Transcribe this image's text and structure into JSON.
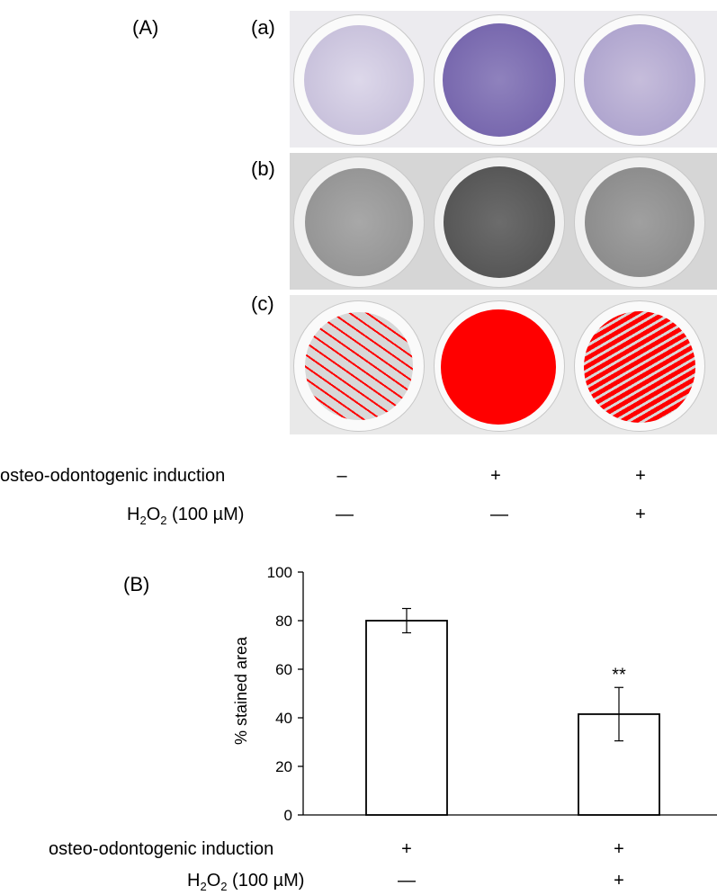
{
  "panel_a": {
    "label": "(A)",
    "sublabels": [
      "(a)",
      "(b)",
      "(c)"
    ],
    "row1": {
      "label": "osteo-odontogenic induction",
      "values": [
        "–",
        "+",
        "+"
      ]
    },
    "row2": {
      "label_main": "H",
      "label_sub1": "2",
      "label_mid": "O",
      "label_sub2": "2",
      "label_rest": " (100 µM)",
      "values": [
        "—",
        "—",
        "+"
      ]
    }
  },
  "panel_b": {
    "label": "(B)",
    "row1": {
      "label": "osteo-odontogenic induction",
      "values": [
        "+",
        "+"
      ]
    },
    "row2": {
      "label_main": "H",
      "label_sub1": "2",
      "label_mid": "O",
      "label_sub2": "2",
      "label_rest": " (100 µM)",
      "values": [
        "—",
        "+"
      ]
    }
  },
  "colors": {
    "stain_light": "#c9c2dc",
    "stain_dark": "#7868ae",
    "gray_light": "#9a9a9a",
    "gray_dark": "#555555",
    "red": "#ff0000"
  },
  "chart_data": {
    "type": "bar",
    "categories": [
      "",
      ""
    ],
    "values": [
      80,
      41.5
    ],
    "errors": [
      5,
      11
    ],
    "annotations": [
      "",
      "**"
    ],
    "ylabel": "% stained area",
    "ylim": [
      0,
      100
    ],
    "yticks": [
      0,
      20,
      40,
      60,
      80,
      100
    ],
    "grid": false
  }
}
